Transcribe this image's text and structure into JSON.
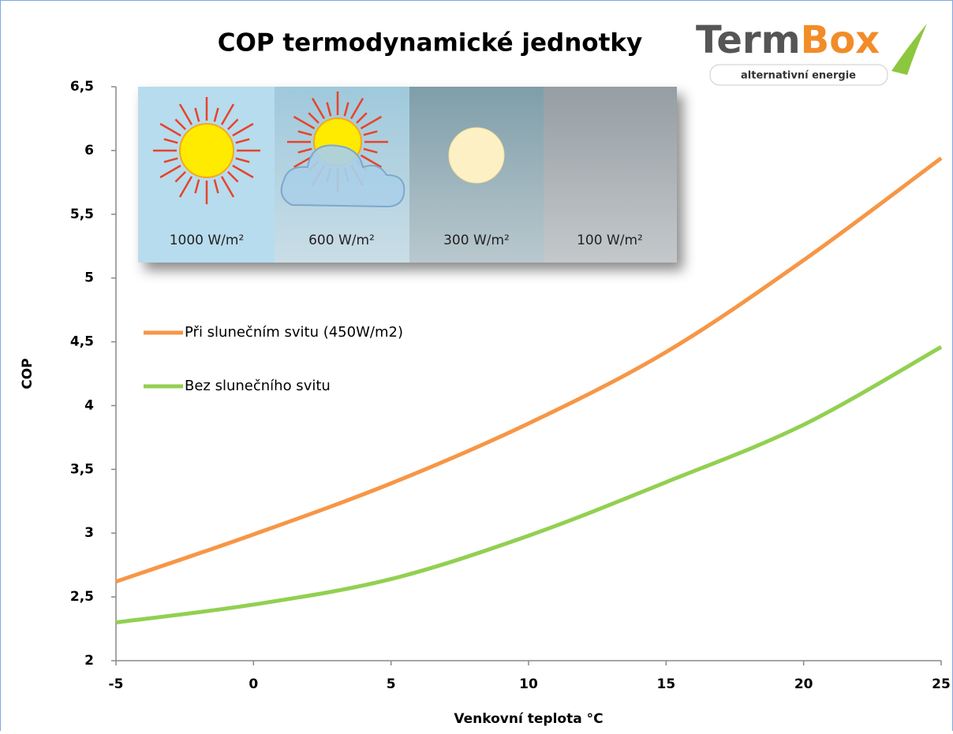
{
  "chart_data": {
    "type": "line",
    "title": "COP termodynamické jednotky",
    "x_label": "Venkovní teplota °C",
    "y_label": "COP",
    "x": [
      -5,
      0,
      5,
      10,
      15,
      20,
      25
    ],
    "series": [
      {
        "name": "Při slunečním svitu (450W/m2)",
        "color": "#f79646",
        "values": [
          2.62,
          2.99,
          3.39,
          3.86,
          4.42,
          5.14,
          5.94
        ]
      },
      {
        "name": "Bez slunečního svitu",
        "color": "#92d050",
        "values": [
          2.3,
          2.44,
          2.64,
          2.98,
          3.4,
          3.85,
          4.46
        ]
      }
    ],
    "xlim": [
      -5,
      25
    ],
    "xticks": [
      -5,
      0,
      5,
      10,
      15,
      20,
      25
    ],
    "ylim": [
      2,
      6.5
    ],
    "yticks": [
      2,
      {
        "value": 2.5,
        "label": "2,5"
      },
      3,
      {
        "value": 3.5,
        "label": "3,5"
      },
      4,
      {
        "value": 4.5,
        "label": "4,5"
      },
      5,
      {
        "value": 5.5,
        "label": "5,5"
      },
      6,
      {
        "value": 6.5,
        "label": "6,5"
      }
    ],
    "grid": false,
    "legend": "center left"
  },
  "logo": {
    "name_dark": "Term",
    "name_orange": "Box",
    "tagline": "alternativní energie"
  },
  "inset": {
    "panels": [
      "1000 W/m²",
      "600 W/m²",
      "300 W/m²",
      "100 W/m²"
    ]
  }
}
